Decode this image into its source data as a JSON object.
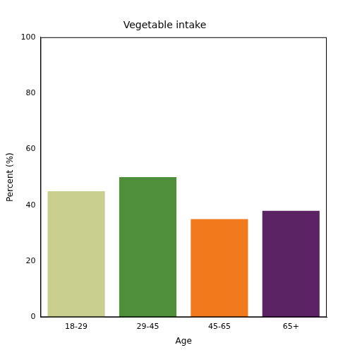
{
  "chart_data": {
    "type": "bar",
    "title": "Vegetable intake",
    "x_label": "Age",
    "y_label": "Percent (%)",
    "categories": [
      "18-29",
      "29-45",
      "45-65",
      "65+"
    ],
    "values": [
      45,
      50,
      35,
      38
    ],
    "colors": [
      "#c9cf8e",
      "#4f8f3a",
      "#f27a1c",
      "#5b2363"
    ],
    "ylim": [
      0,
      100
    ],
    "yticks": [
      0,
      20,
      40,
      60,
      80,
      100
    ],
    "grid": false
  }
}
